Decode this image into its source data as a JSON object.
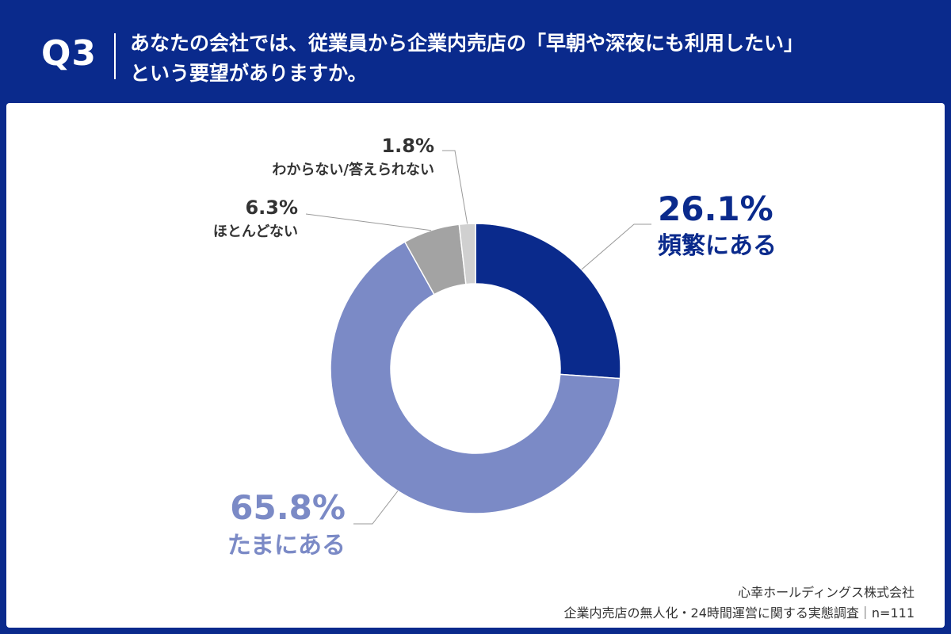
{
  "header": {
    "question_no": "Q3",
    "question_line1": "あなたの会社では、従業員から企業内売店の「早朝や深夜にも利用したい」",
    "question_line2": "という要望がありますか。"
  },
  "chart_data": {
    "type": "pie",
    "title": "",
    "categories": [
      "頻繁にある",
      "たまにある",
      "ほとんどない",
      "わからない/答えられない"
    ],
    "values": [
      26.1,
      65.8,
      6.3,
      1.8
    ],
    "value_labels": [
      "26.1%",
      "65.8%",
      "6.3%",
      "1.8%"
    ],
    "colors": [
      "#0a2a8c",
      "#7b8ac6",
      "#a3a3a3",
      "#d0d0d0"
    ],
    "donut": true
  },
  "source": {
    "company": "心幸ホールディングス株式会社",
    "survey": "企業内売店の無人化・24時間運営に関する実態調査｜n=111"
  }
}
